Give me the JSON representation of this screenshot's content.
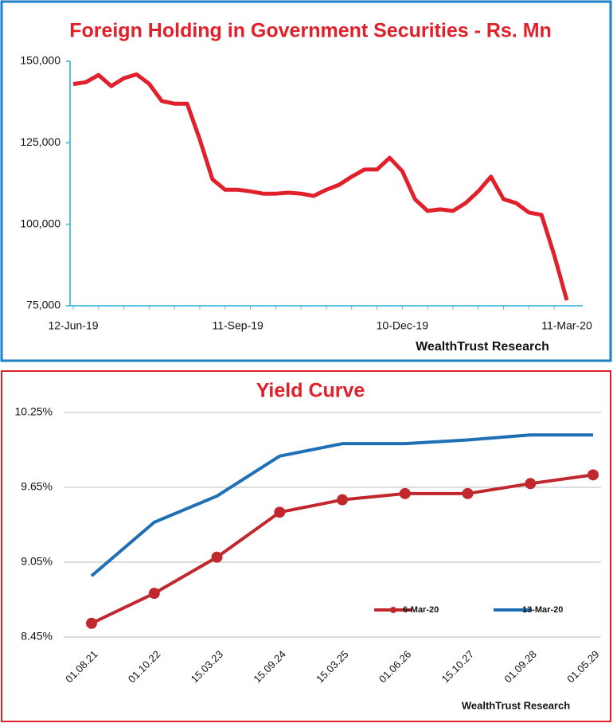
{
  "chart_data": [
    {
      "type": "line",
      "title": "Foreign Holding in Government Securities - Rs. Mn",
      "annotation": "WealthTrust Research",
      "categories": [
        "12-Jun-19",
        null,
        null,
        null,
        null,
        null,
        null,
        null,
        null,
        null,
        null,
        null,
        null,
        "11-Sep-19",
        null,
        null,
        null,
        null,
        null,
        null,
        null,
        null,
        null,
        null,
        null,
        null,
        "10-Dec-19",
        null,
        null,
        null,
        null,
        null,
        null,
        null,
        null,
        null,
        null,
        null,
        null,
        "11-Mar-20"
      ],
      "series": [
        {
          "name": "Foreign Holding",
          "color": "#e0202a",
          "values": [
            143000,
            143600,
            145800,
            142400,
            144800,
            146000,
            143100,
            137800,
            137000,
            137000,
            126000,
            113800,
            110600,
            110600,
            110100,
            109400,
            109400,
            109700,
            109400,
            108700,
            110600,
            112100,
            114600,
            116800,
            116800,
            120400,
            116300,
            107700,
            104100,
            104600,
            104100,
            106500,
            110100,
            114600,
            107700,
            106500,
            103600,
            102900,
            90600,
            76700
          ]
        }
      ],
      "ylim": [
        75000,
        150000
      ],
      "yticks": [
        {
          "value": 75000,
          "label": "75,000"
        },
        {
          "value": 100000,
          "label": "100,000"
        },
        {
          "value": 125000,
          "label": "125,000"
        },
        {
          "value": 150000,
          "label": "150,000"
        }
      ],
      "grid": false,
      "legend": false,
      "markers": false
    },
    {
      "type": "line",
      "title": "Yield Curve",
      "annotation": "WealthTrust Research",
      "categories": [
        "01.08.21",
        "01.10.22",
        "15.03.23",
        "15.09.24",
        "15.03.25",
        "01.06.26",
        "15.10.27",
        "01.09.28",
        "01.05.29"
      ],
      "series": [
        {
          "name": "6-Mar-20",
          "color": "#c0282d",
          "markers": true,
          "values": [
            8.56,
            8.8,
            9.09,
            9.45,
            9.55,
            9.6,
            9.6,
            9.68,
            9.75
          ]
        },
        {
          "name": "13-Mar-20",
          "color": "#1f6fb5",
          "markers": false,
          "values": [
            8.94,
            9.37,
            9.58,
            9.9,
            10.0,
            10.0,
            10.03,
            10.07,
            10.07
          ]
        }
      ],
      "ylim": [
        8.45,
        10.25
      ],
      "yticks": [
        {
          "value": 8.45,
          "label": "8.45%"
        },
        {
          "value": 9.05,
          "label": "9.05%"
        },
        {
          "value": 9.65,
          "label": "9.65%"
        },
        {
          "value": 10.25,
          "label": "10.25%"
        }
      ],
      "grid": true,
      "legend": "lower right"
    }
  ]
}
